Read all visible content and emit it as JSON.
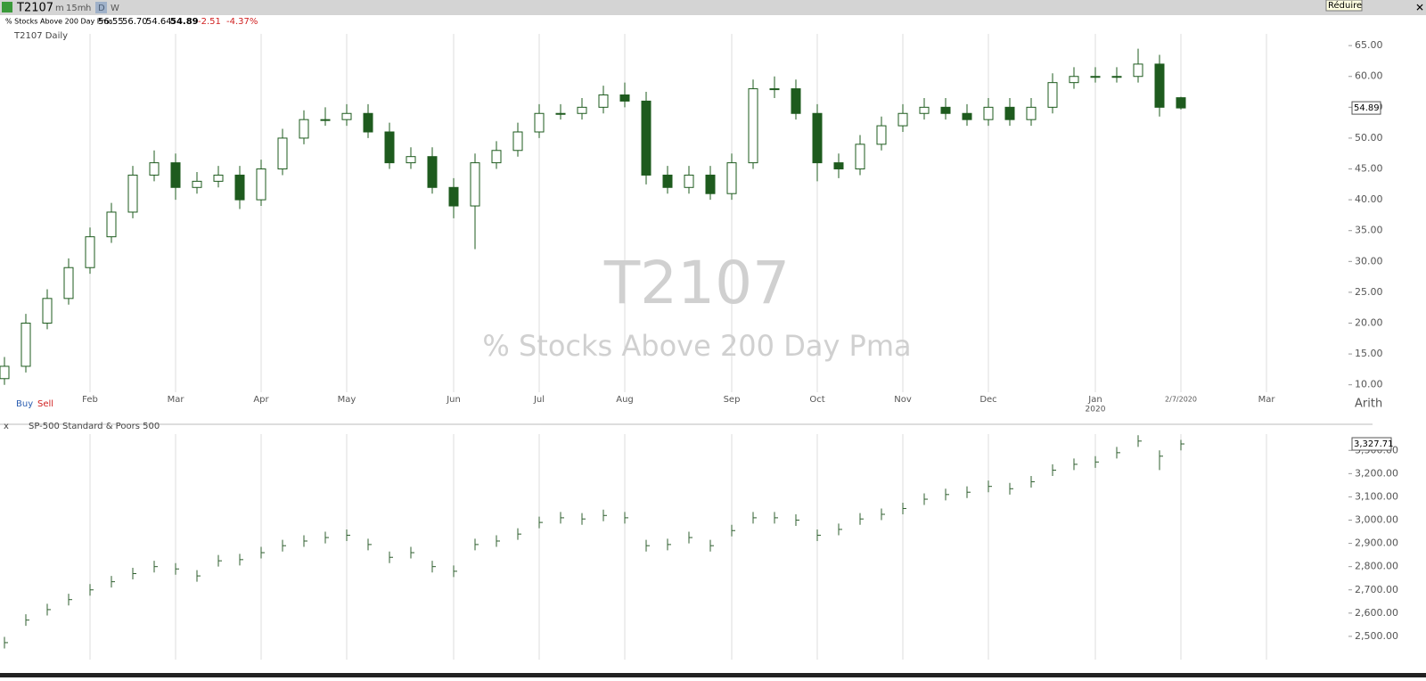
{
  "toolbar": {
    "symbol": "T2107",
    "intervals": [
      "m",
      "15m",
      "h",
      "D",
      "W"
    ],
    "tooltip": "Réduire"
  },
  "header": {
    "name": "% Stocks Above 200 Day Pma",
    "quote": [
      "56.55",
      "56.70",
      "54.64",
      "54.89"
    ],
    "change": [
      "-2.51",
      "-4.37%"
    ]
  },
  "chart_data": [
    {
      "type": "candlestick",
      "title": "T2107 Daily",
      "watermark": "T2107",
      "watermark_subtitle": "% Stocks Above 200 Day Pma",
      "buttons": [
        "Buy",
        "Sell"
      ],
      "scale_mode": "Arith",
      "year_label": "2020",
      "last_label": "54.89",
      "up_color": "#ffffff",
      "down_color": "#1e5b1e",
      "grid": true,
      "categories": [
        null,
        null,
        null,
        null,
        "Feb",
        null,
        null,
        null,
        "Mar",
        null,
        null,
        null,
        "Apr",
        null,
        null,
        null,
        "May",
        null,
        null,
        null,
        null,
        "Jun",
        null,
        null,
        null,
        "Jul",
        null,
        null,
        null,
        "Aug",
        null,
        null,
        null,
        null,
        "Sep",
        null,
        null,
        null,
        "Oct",
        null,
        null,
        null,
        "Nov",
        null,
        null,
        null,
        "Dec",
        null,
        null,
        null,
        null,
        "Jan",
        null,
        null,
        null,
        "2/7/2020",
        null,
        null,
        null,
        "Mar"
      ],
      "open": [
        11,
        13,
        20,
        24,
        29,
        34,
        38,
        44,
        46,
        42,
        43,
        44,
        40,
        45,
        50,
        53,
        53,
        54,
        51,
        46,
        47,
        42,
        39,
        46,
        48,
        51,
        54,
        54,
        55,
        57,
        56,
        44,
        42,
        44,
        41,
        46,
        58,
        58,
        54,
        46,
        45,
        49,
        52,
        54,
        55,
        54,
        53,
        55,
        53,
        55,
        59,
        60,
        60,
        60,
        62,
        56.55,
        null,
        null,
        null,
        null
      ],
      "high": [
        14.5,
        21.5,
        25.5,
        30.5,
        35.5,
        39.5,
        45.5,
        48,
        47.5,
        44.5,
        45.5,
        45.5,
        46.5,
        51.5,
        54.5,
        55,
        55.5,
        55.5,
        52.5,
        48.5,
        48.5,
        43.5,
        47.5,
        49.5,
        52.5,
        55.5,
        55.5,
        56.5,
        58.5,
        59,
        57.5,
        45.5,
        45.5,
        45.5,
        47.5,
        59.5,
        60,
        59.5,
        55.5,
        47.5,
        50.5,
        53.5,
        55.5,
        56.5,
        56.5,
        55.5,
        56.5,
        56.5,
        56.5,
        60.5,
        61.5,
        61.5,
        61.5,
        64.5,
        63.5,
        56.7,
        null,
        null,
        null,
        null
      ],
      "low": [
        10,
        12,
        19,
        23,
        28,
        33,
        37,
        43,
        40,
        41,
        42,
        38.5,
        39,
        44,
        49,
        52,
        52,
        50,
        45,
        45,
        41,
        37,
        32,
        45,
        47,
        50,
        53,
        53,
        54,
        55,
        42.5,
        41,
        41,
        40,
        40,
        45,
        56.5,
        53,
        43,
        43.5,
        44,
        48,
        51,
        53,
        53,
        52,
        52,
        52,
        52,
        54,
        58,
        59,
        59,
        59,
        53.5,
        54.64,
        null,
        null,
        null,
        null
      ],
      "close": [
        13,
        20,
        24,
        29,
        34,
        38,
        44,
        46,
        42,
        43,
        44,
        40,
        45,
        50,
        53,
        53,
        54,
        51,
        46,
        47,
        42,
        39,
        46,
        48,
        51,
        54,
        54,
        55,
        57,
        56,
        44,
        42,
        44,
        41,
        46,
        58,
        58,
        54,
        46,
        45,
        49,
        52,
        54,
        55,
        54,
        53,
        55,
        53,
        55,
        59,
        60,
        60,
        60,
        62,
        55,
        54.89,
        null,
        null,
        null,
        null
      ],
      "ylim": [
        8.8,
        66.9
      ],
      "yticks": [
        {
          "value": 10,
          "label": "10.00"
        },
        {
          "value": 15,
          "label": "15.00"
        },
        {
          "value": 20,
          "label": "20.00"
        },
        {
          "value": 25,
          "label": "25.00"
        },
        {
          "value": 30,
          "label": "30.00"
        },
        {
          "value": 35,
          "label": "35.00"
        },
        {
          "value": 40,
          "label": "40.00"
        },
        {
          "value": 45,
          "label": "45.00"
        },
        {
          "value": 50,
          "label": "50.00"
        },
        {
          "value": 55,
          "label": "55.00"
        },
        {
          "value": 60,
          "label": "60.00"
        },
        {
          "value": 65,
          "label": "65.00"
        }
      ]
    },
    {
      "type": "ohlc",
      "title": "SP-500 Standard & Poors 500",
      "close_label": "x",
      "last_label": "3,327.71",
      "color": "#2f5f2f",
      "grid": true,
      "high": [
        2498,
        2595,
        2640,
        2683,
        2725,
        2760,
        2795,
        2825,
        2815,
        2785,
        2850,
        2855,
        2885,
        2915,
        2935,
        2950,
        2960,
        2920,
        2865,
        2885,
        2825,
        2805,
        2920,
        2935,
        2965,
        3015,
        3035,
        3030,
        3045,
        3035,
        2915,
        2920,
        2950,
        2915,
        2980,
        3035,
        3035,
        3025,
        2960,
        2985,
        3030,
        3050,
        3075,
        3115,
        3135,
        3145,
        3170,
        3160,
        3190,
        3240,
        3265,
        3275,
        3315,
        3365,
        3300,
        3345,
        null,
        null,
        null,
        null
      ],
      "low": [
        2448,
        2545,
        2590,
        2633,
        2675,
        2710,
        2745,
        2775,
        2765,
        2735,
        2800,
        2805,
        2835,
        2865,
        2885,
        2900,
        2910,
        2870,
        2815,
        2835,
        2775,
        2755,
        2870,
        2885,
        2915,
        2965,
        2985,
        2980,
        2995,
        2985,
        2865,
        2870,
        2900,
        2865,
        2930,
        2985,
        2985,
        2975,
        2910,
        2935,
        2980,
        3000,
        3025,
        3065,
        3085,
        3095,
        3120,
        3110,
        3140,
        3190,
        3215,
        3225,
        3265,
        3315,
        3215,
        3300,
        null,
        null,
        null,
        null
      ],
      "close": [
        2473,
        2570,
        2615,
        2658,
        2700,
        2735,
        2770,
        2800,
        2790,
        2760,
        2825,
        2830,
        2860,
        2890,
        2910,
        2925,
        2935,
        2895,
        2840,
        2860,
        2800,
        2780,
        2895,
        2910,
        2940,
        2990,
        3010,
        3005,
        3020,
        3010,
        2890,
        2895,
        2925,
        2890,
        2955,
        3010,
        3010,
        3000,
        2935,
        2960,
        3005,
        3025,
        3050,
        3090,
        3110,
        3120,
        3145,
        3135,
        3165,
        3215,
        3240,
        3250,
        3290,
        3340,
        3275,
        3327.71,
        null,
        null,
        null,
        null
      ],
      "ylim": [
        2400,
        3370
      ],
      "yticks": [
        {
          "value": 2500,
          "label": "2,500.00"
        },
        {
          "value": 2600,
          "label": "2,600.00"
        },
        {
          "value": 2700,
          "label": "2,700.00"
        },
        {
          "value": 2800,
          "label": "2,800.00"
        },
        {
          "value": 2900,
          "label": "2,900.00"
        },
        {
          "value": 3000,
          "label": "3,000.00"
        },
        {
          "value": 3100,
          "label": "3,100.00"
        },
        {
          "value": 3200,
          "label": "3,200.00"
        },
        {
          "value": 3300,
          "label": "3,300.00"
        }
      ]
    }
  ]
}
